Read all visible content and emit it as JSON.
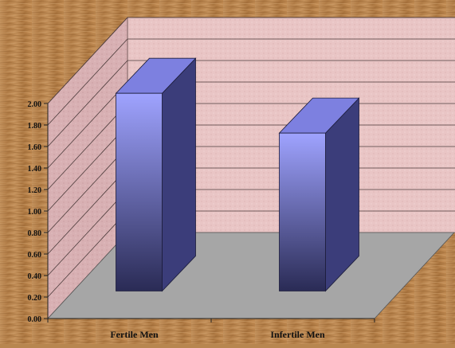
{
  "chart_data": {
    "type": "bar",
    "categories": [
      "Fertile Men",
      "Infertile Men"
    ],
    "values": [
      1.95,
      1.58
    ],
    "ylim": [
      0,
      2.0
    ],
    "yticks": [
      "0.00",
      "0.20",
      "0.40",
      "0.60",
      "0.80",
      "1.00",
      "1.20",
      "1.40",
      "1.60",
      "1.80",
      "2.00"
    ],
    "grid": true,
    "title": "",
    "xlabel": "",
    "ylabel": "",
    "legend": false,
    "colors": {
      "bar_front_top": "#9fa3ff",
      "bar_front_bottom": "#2a2b55",
      "bar_side": "#3b3d7a",
      "bar_top": "#7d80e0",
      "back_wall": "#e8c3c3",
      "side_wall": "#d9b3b6",
      "floor": "#a6a6a6",
      "wood": "#b8864f"
    }
  }
}
